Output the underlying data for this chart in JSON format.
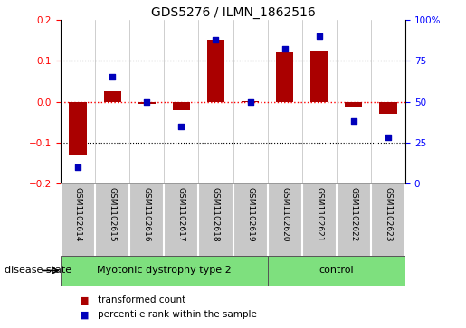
{
  "title": "GDS5276 / ILMN_1862516",
  "samples": [
    "GSM1102614",
    "GSM1102615",
    "GSM1102616",
    "GSM1102617",
    "GSM1102618",
    "GSM1102619",
    "GSM1102620",
    "GSM1102621",
    "GSM1102622",
    "GSM1102623"
  ],
  "red_values": [
    -0.13,
    0.025,
    -0.005,
    -0.02,
    0.15,
    0.002,
    0.12,
    0.125,
    -0.012,
    -0.03
  ],
  "blue_values": [
    10,
    65,
    50,
    35,
    88,
    50,
    82,
    90,
    38,
    28
  ],
  "ylim_left": [
    -0.2,
    0.2
  ],
  "ylim_right": [
    0,
    100
  ],
  "yticks_left": [
    -0.2,
    -0.1,
    0.0,
    0.1,
    0.2
  ],
  "yticks_right": [
    0,
    25,
    50,
    75,
    100
  ],
  "ytick_labels_right": [
    "0",
    "25",
    "50",
    "75",
    "100%"
  ],
  "group1_label": "Myotonic dystrophy type 2",
  "group2_label": "control",
  "group1_indices": [
    0,
    1,
    2,
    3,
    4,
    5
  ],
  "group2_indices": [
    6,
    7,
    8,
    9
  ],
  "disease_state_label": "disease state",
  "legend_red": "transformed count",
  "legend_blue": "percentile rank within the sample",
  "bar_color": "#AA0000",
  "dot_color": "#0000BB",
  "bg_plot": "#FFFFFF",
  "bg_sample_row": "#C8C8C8",
  "bg_group": "#7EE07E",
  "border_color": "#999999"
}
